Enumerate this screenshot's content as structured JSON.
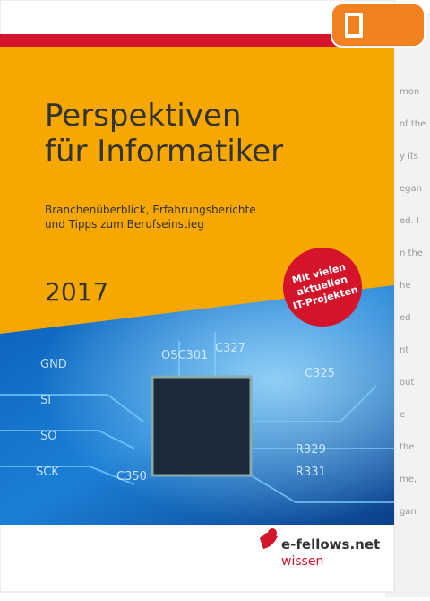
{
  "cover": {
    "title_line1": "Perspektiven",
    "title_line2": "für Informatiker",
    "subtitle_line1": "Branchenüberblick, Erfahrungsberichte",
    "subtitle_line2": "und Tipps zum Berufseinstieg",
    "year": "2017",
    "badge": [
      "Mit vielen",
      "aktuellen",
      "IT-Projekten"
    ],
    "circuit_labels": [
      "GND",
      "SI",
      "SO",
      "SCK",
      "OSC301",
      "C327",
      "C325",
      "R329",
      "R331",
      "C350"
    ],
    "publisher": "e-fellows.net",
    "publisher_sub": "wissen"
  },
  "back_page": {
    "snippets": [
      "mon",
      "of the",
      "y its",
      "egan",
      "ed. I",
      "n the",
      "he",
      "ed",
      "nt",
      "out",
      "e",
      "the",
      "me,",
      "gan"
    ]
  }
}
